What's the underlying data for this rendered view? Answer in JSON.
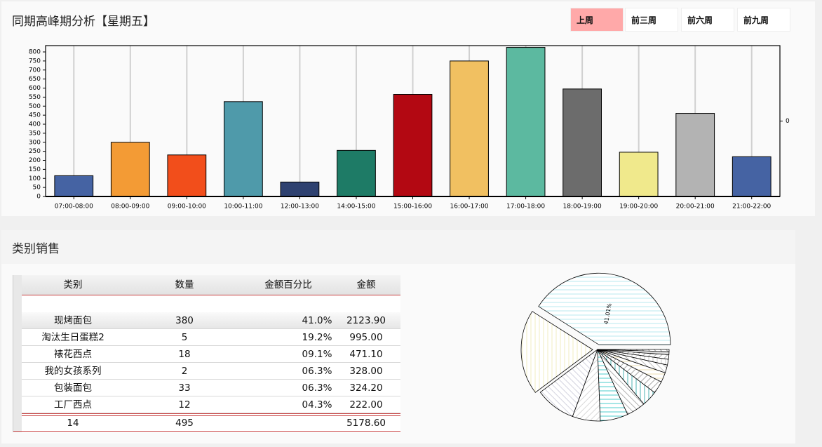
{
  "header": {
    "title": "同期高峰期分析【星期五】"
  },
  "tabs": [
    {
      "label": "上周",
      "active": true
    },
    {
      "label": "前三周",
      "active": false
    },
    {
      "label": "前六周",
      "active": false
    },
    {
      "label": "前九周",
      "active": false
    }
  ],
  "chart_data": [
    {
      "type": "bar",
      "categories": [
        "07:00-08:00",
        "08:00-09:00",
        "09:00-10:00",
        "10:00-11:00",
        "12:00-13:00",
        "14:00-15:00",
        "15:00-16:00",
        "16:00-17:00",
        "17:00-18:00",
        "18:00-19:00",
        "19:00-20:00",
        "20:00-21:00",
        "21:00-22:00"
      ],
      "values": [
        115,
        300,
        230,
        525,
        80,
        255,
        565,
        750,
        825,
        595,
        245,
        460,
        220
      ],
      "colors": [
        "#4563a3",
        "#f39b35",
        "#f24e1b",
        "#4f9aaa",
        "#2e4170",
        "#1e7b66",
        "#b30812",
        "#f1c061",
        "#5cb9a0",
        "#6c6c6c",
        "#f0e98c",
        "#b3b3b3",
        "#4563a3"
      ],
      "ylim": [
        0,
        835
      ],
      "yticks": [
        0,
        50,
        100,
        150,
        200,
        250,
        300,
        350,
        400,
        450,
        500,
        550,
        600,
        650,
        700,
        750,
        800
      ],
      "y2lim": [
        -1,
        1
      ],
      "y2ticks": [
        0
      ],
      "grid": true
    },
    {
      "type": "pie",
      "values": [
        41.01,
        19.2,
        9.1,
        6.3,
        6.3,
        4.3,
        3.5,
        2.8,
        2.2,
        1.8,
        1.3,
        1.0,
        0.7,
        0.49
      ],
      "value_labels": [
        "41.01%",
        null,
        null,
        null,
        null,
        null,
        null,
        null,
        null,
        null,
        null,
        null,
        null,
        null
      ],
      "colors": [
        "#a8e3ec",
        "#efe8b0",
        "#c8c8d8",
        "#d0d0d0",
        "#20c0c0",
        "#a0a0a0",
        "#20a0a0",
        "#909090",
        "#e8d8a0",
        "#b0b0b0",
        "#c0c0c0",
        "#a0a0a0",
        "#909090",
        "#808080"
      ]
    }
  ],
  "section": {
    "title": "类别销售"
  },
  "table": {
    "headers": [
      "类别",
      "数量",
      "金额百分比",
      "金额"
    ],
    "rows": [
      [
        "现烤面包",
        "380",
        "41.0%",
        "2123.90"
      ],
      [
        "淘汰生日蛋糕2",
        "5",
        "19.2%",
        "995.00"
      ],
      [
        "裱花西点",
        "18",
        "09.1%",
        "471.10"
      ],
      [
        "我的女孩系列",
        "2",
        "06.3%",
        "328.00"
      ],
      [
        "包装面包",
        "33",
        "06.3%",
        "324.20"
      ],
      [
        "工厂西点",
        "12",
        "04.3%",
        "222.00"
      ]
    ],
    "footer": {
      "count": "14",
      "quantity": "495",
      "amount": "5178.60"
    }
  }
}
